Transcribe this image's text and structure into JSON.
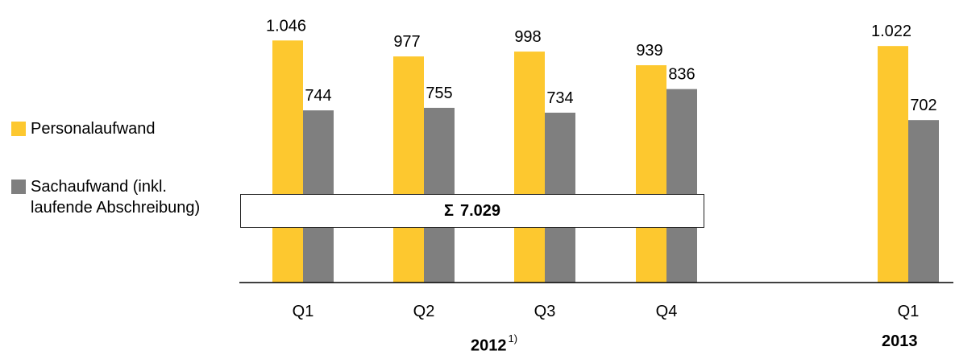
{
  "legend": {
    "personal_label": "Personalaufwand",
    "sach_label_line1": "Sachaufwand (inkl.",
    "sach_label_line2": "laufende Abschreibung)"
  },
  "sum_box": {
    "symbol": "Σ",
    "value": "7.029"
  },
  "years": [
    {
      "label": "2012",
      "footnote": "1)"
    },
    {
      "label": "2013",
      "footnote": ""
    }
  ],
  "colors": {
    "personal": "#FDC82F",
    "sach": "#7F7F7F",
    "baseline": "#000000"
  },
  "chart_data": {
    "type": "bar",
    "categories": [
      "Q1",
      "Q2",
      "Q3",
      "Q4",
      "Q1"
    ],
    "category_groups": [
      "2012",
      "2012",
      "2012",
      "2012",
      "2013"
    ],
    "series": [
      {
        "name": "Personalaufwand",
        "values": [
          1046,
          977,
          998,
          939,
          1022
        ],
        "labels": [
          "1.046",
          "977",
          "998",
          "939",
          "1.022"
        ]
      },
      {
        "name": "Sachaufwand (inkl. laufende Abschreibung)",
        "values": [
          744,
          755,
          734,
          836,
          702
        ],
        "labels": [
          "744",
          "755",
          "734",
          "836",
          "702"
        ]
      }
    ],
    "annotation": "Σ 7.029",
    "ylim": [
      0,
      1100
    ],
    "grid": false,
    "legend_position": "left"
  }
}
